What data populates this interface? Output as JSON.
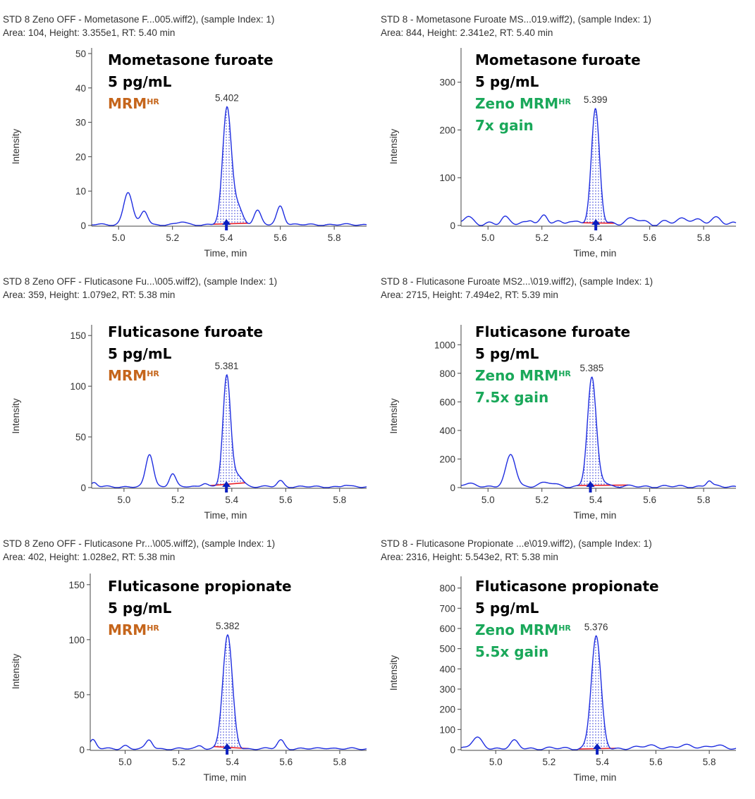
{
  "panels": [
    {
      "header_line1": "STD 8 Zeno OFF - Mometasone F...005.wiff2), (sample Index: 1)",
      "header_line2": "Area: 104, Height: 3.355e1, RT: 5.40 min",
      "compound": "Mometasone furoate",
      "concentration": "5 pg/mL",
      "mode": "MRM",
      "mode_sup": "HR",
      "gain": "",
      "mode_color": "#c5651b",
      "peak_label": "5.402"
    },
    {
      "header_line1": "STD 8 - Mometasone Furoate MS...019.wiff2), (sample Index: 1)",
      "header_line2": "Area: 844, Height: 2.341e2, RT: 5.40 min",
      "compound": "Mometasone furoate",
      "concentration": "5 pg/mL",
      "mode": "Zeno MRM",
      "mode_sup": "HR",
      "gain": "7x gain",
      "mode_color": "#1aa85a",
      "peak_label": "5.399"
    },
    {
      "header_line1": "STD 8 Zeno OFF - Fluticasone Fu...\\005.wiff2), (sample Index: 1)",
      "header_line2": "Area: 359, Height: 1.079e2, RT: 5.38 min",
      "compound": "Fluticasone furoate",
      "concentration": "5 pg/mL",
      "mode": "MRM",
      "mode_sup": "HR",
      "gain": "",
      "mode_color": "#c5651b",
      "peak_label": "5.381"
    },
    {
      "header_line1": "STD 8 - Fluticasone Furoate MS2...\\019.wiff2), (sample Index: 1)",
      "header_line2": "Area: 2715, Height: 7.494e2, RT: 5.39 min",
      "compound": "Fluticasone furoate",
      "concentration": "5 pg/mL",
      "mode": "Zeno MRM",
      "mode_sup": "HR",
      "gain": "7.5x gain",
      "mode_color": "#1aa85a",
      "peak_label": "5.385"
    },
    {
      "header_line1": "STD 8 Zeno OFF - Fluticasone Pr...\\005.wiff2), (sample Index: 1)",
      "header_line2": "Area: 402, Height: 1.028e2, RT: 5.38 min",
      "compound": "Fluticasone propionate",
      "concentration": "5 pg/mL",
      "mode": "MRM",
      "mode_sup": "HR",
      "gain": "",
      "mode_color": "#c5651b",
      "peak_label": "5.382"
    },
    {
      "header_line1": "STD 8 - Fluticasone Propionate ...e\\019.wiff2), (sample Index: 1)",
      "header_line2": "Area: 2316, Height: 5.543e2, RT: 5.38 min",
      "compound": "Fluticasone propionate",
      "concentration": "5 pg/mL",
      "mode": "Zeno MRM",
      "mode_sup": "HR",
      "gain": "5.5x gain",
      "mode_color": "#1aa85a",
      "peak_label": "5.376"
    }
  ],
  "chart_data": [
    {
      "type": "line",
      "xlabel": "Time, min",
      "ylabel": "Intensity",
      "xlim": [
        4.9,
        5.92
      ],
      "ylim": [
        0,
        50
      ],
      "xticks": [
        5.0,
        5.2,
        5.4,
        5.6,
        5.8
      ],
      "yticks": [
        0,
        10,
        20,
        30,
        40,
        50
      ],
      "baseline_noise": 0.3,
      "peaks": [
        [
          5.035,
          9.5,
          0.016
        ],
        [
          5.095,
          4.0,
          0.013
        ],
        [
          5.235,
          0.8,
          0.015
        ],
        [
          5.402,
          33.5,
          0.016
        ],
        [
          5.44,
          5.5,
          0.018
        ],
        [
          5.515,
          4.0,
          0.013
        ],
        [
          5.6,
          5.5,
          0.013
        ]
      ],
      "integration": [
        5.35,
        5.48
      ],
      "main_peak": {
        "rt": 5.402,
        "height": 33.55
      },
      "marker_rt": 5.4
    },
    {
      "type": "line",
      "xlabel": "Time, min",
      "ylabel": "Intensity",
      "xlim": [
        4.9,
        5.92
      ],
      "ylim": [
        0,
        360
      ],
      "xticks": [
        5.0,
        5.2,
        5.4,
        5.6,
        5.8
      ],
      "yticks": [
        0,
        100,
        200,
        300
      ],
      "baseline_noise": 7,
      "peaks": [
        [
          4.92,
          10,
          0.015
        ],
        [
          5.06,
          8,
          0.012
        ],
        [
          5.16,
          10,
          0.011
        ],
        [
          5.21,
          12,
          0.011
        ],
        [
          5.3,
          8,
          0.012
        ],
        [
          5.399,
          234,
          0.015
        ],
        [
          5.55,
          8,
          0.02
        ],
        [
          5.75,
          10,
          0.03
        ],
        [
          5.85,
          6,
          0.02
        ]
      ],
      "integration": [
        5.35,
        5.47
      ],
      "main_peak": {
        "rt": 5.399,
        "height": 234.1
      },
      "marker_rt": 5.4
    },
    {
      "type": "line",
      "xlabel": "Time, min",
      "ylabel": "Intensity",
      "xlim": [
        4.88,
        5.9
      ],
      "ylim": [
        0,
        155
      ],
      "xticks": [
        5.0,
        5.2,
        5.4,
        5.6,
        5.8
      ],
      "yticks": [
        0,
        50,
        100,
        150
      ],
      "baseline_noise": 1,
      "peaks": [
        [
          4.89,
          4,
          0.01
        ],
        [
          5.095,
          32,
          0.014
        ],
        [
          5.18,
          13,
          0.012
        ],
        [
          5.3,
          4,
          0.012
        ],
        [
          5.381,
          108,
          0.014
        ],
        [
          5.42,
          12,
          0.02
        ],
        [
          5.58,
          6,
          0.012
        ],
        [
          5.82,
          1.5,
          0.01
        ]
      ],
      "integration": [
        5.32,
        5.45
      ],
      "main_peak": {
        "rt": 5.381,
        "height": 107.9
      },
      "marker_rt": 5.38
    },
    {
      "type": "line",
      "xlabel": "Time, min",
      "ylabel": "Intensity",
      "xlim": [
        4.9,
        5.92
      ],
      "ylim": [
        0,
        1100
      ],
      "xticks": [
        5.0,
        5.2,
        5.4,
        5.6,
        5.8
      ],
      "yticks": [
        0,
        200,
        400,
        600,
        800,
        1000
      ],
      "baseline_noise": 10,
      "peaks": [
        [
          4.93,
          15,
          0.03
        ],
        [
          5.085,
          220,
          0.018
        ],
        [
          5.22,
          25,
          0.03
        ],
        [
          5.385,
          749,
          0.016
        ],
        [
          5.42,
          40,
          0.02
        ],
        [
          5.82,
          40,
          0.01
        ]
      ],
      "integration": [
        5.33,
        5.52
      ],
      "main_peak": {
        "rt": 5.385,
        "height": 749.4
      },
      "marker_rt": 5.38
    },
    {
      "type": "line",
      "xlabel": "Time, min",
      "ylabel": "Intensity",
      "xlim": [
        4.87,
        5.9
      ],
      "ylim": [
        0,
        155
      ],
      "xticks": [
        5.0,
        5.2,
        5.4,
        5.6,
        5.8
      ],
      "yticks": [
        0,
        50,
        100,
        150
      ],
      "baseline_noise": 1,
      "peaks": [
        [
          4.88,
          8,
          0.012
        ],
        [
          5.0,
          3,
          0.012
        ],
        [
          5.09,
          8,
          0.012
        ],
        [
          5.28,
          3,
          0.012
        ],
        [
          5.382,
          102.8,
          0.018
        ],
        [
          5.58,
          8,
          0.013
        ],
        [
          5.75,
          1,
          0.02
        ]
      ],
      "integration": [
        5.33,
        5.46
      ],
      "main_peak": {
        "rt": 5.382,
        "height": 102.8
      },
      "marker_rt": 5.38
    },
    {
      "type": "line",
      "xlabel": "Time, min",
      "ylabel": "Intensity",
      "xlim": [
        4.87,
        5.9
      ],
      "ylim": [
        0,
        830
      ],
      "xticks": [
        5.0,
        5.2,
        5.4,
        5.6,
        5.8
      ],
      "yticks": [
        0,
        100,
        200,
        300,
        400,
        500,
        600,
        700,
        800
      ],
      "baseline_noise": 8,
      "peaks": [
        [
          4.93,
          50,
          0.02
        ],
        [
          5.07,
          35,
          0.015
        ],
        [
          5.376,
          554,
          0.018
        ],
        [
          5.58,
          15,
          0.03
        ],
        [
          5.72,
          15,
          0.03
        ],
        [
          5.82,
          12,
          0.03
        ]
      ],
      "integration": [
        5.31,
        5.45
      ],
      "main_peak": {
        "rt": 5.376,
        "height": 554.3
      },
      "marker_rt": 5.38
    }
  ]
}
